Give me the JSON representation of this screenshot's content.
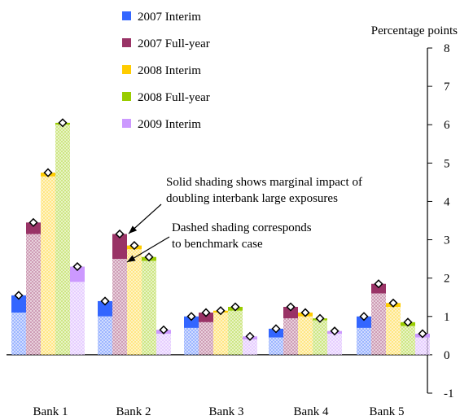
{
  "chart_data": {
    "type": "bar",
    "ylabel": "Percentage points",
    "ylim": [
      -1,
      8
    ],
    "yticks": [
      -1,
      0,
      1,
      2,
      3,
      4,
      5,
      6,
      7,
      8
    ],
    "categories": [
      "Bank 1",
      "Bank 2",
      "Bank 3",
      "Bank 4",
      "Bank 5"
    ],
    "series": [
      {
        "name": "2007 Interim",
        "color": "#3366ff",
        "benchmark": [
          1.1,
          1.0,
          0.7,
          0.45,
          0.7
        ],
        "values": [
          1.55,
          1.4,
          1.0,
          0.68,
          1.0
        ]
      },
      {
        "name": "2007 Full-year",
        "color": "#993366",
        "benchmark": [
          3.15,
          2.5,
          0.85,
          0.95,
          1.6
        ],
        "values": [
          3.45,
          3.15,
          1.1,
          1.25,
          1.85
        ]
      },
      {
        "name": "2008 Interim",
        "color": "#ffcc00",
        "benchmark": [
          4.65,
          2.75,
          1.1,
          1.0,
          1.25
        ],
        "values": [
          4.75,
          2.85,
          1.15,
          1.1,
          1.35
        ]
      },
      {
        "name": "2008 Full-year",
        "color": "#99cc00",
        "benchmark": [
          6.0,
          2.45,
          1.15,
          0.9,
          0.75
        ],
        "values": [
          6.05,
          2.55,
          1.25,
          0.95,
          0.85
        ]
      },
      {
        "name": "2009 Interim",
        "color": "#cc99ff",
        "benchmark": [
          1.9,
          0.55,
          0.4,
          0.55,
          0.45
        ],
        "values": [
          2.3,
          0.65,
          0.48,
          0.62,
          0.55
        ]
      }
    ],
    "annotations": [
      {
        "lines": [
          "Solid shading shows marginal impact of",
          "doubling interbank large exposures"
        ]
      },
      {
        "lines": [
          "Dashed shading corresponds",
          "to benchmark case"
        ]
      }
    ],
    "legend_position": "top-left",
    "grid": false
  }
}
